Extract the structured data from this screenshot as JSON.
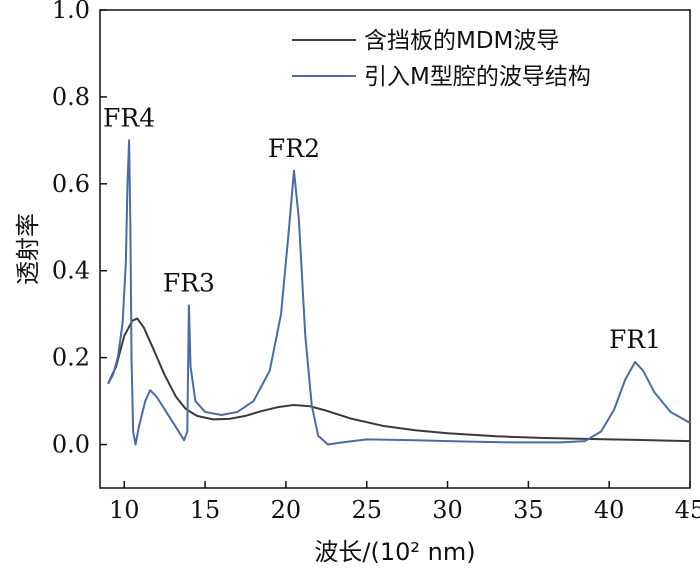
{
  "chart_data": {
    "type": "line",
    "xlabel": "波长/(10² nm)",
    "ylabel": "透射率",
    "xlim": [
      8.5,
      45
    ],
    "ylim": [
      -0.1,
      1.0
    ],
    "xticks": [
      10,
      15,
      20,
      25,
      30,
      35,
      40,
      45
    ],
    "xtick_labels": [
      "10",
      "15",
      "20",
      "25",
      "30",
      "35",
      "40",
      "45"
    ],
    "yticks": [
      0.0,
      0.2,
      0.4,
      0.6,
      0.8,
      1.0
    ],
    "ytick_labels": [
      "0.0",
      "0.2",
      "0.4",
      "0.6",
      "0.8",
      "1.0"
    ],
    "grid": false,
    "legend_position": "top-right",
    "series": [
      {
        "name": "含挡板的MDM波导",
        "color": "#3a3a3a",
        "points": [
          [
            9.0,
            0.14
          ],
          [
            9.5,
            0.18
          ],
          [
            10.0,
            0.25
          ],
          [
            10.5,
            0.285
          ],
          [
            10.8,
            0.29
          ],
          [
            11.2,
            0.27
          ],
          [
            11.8,
            0.22
          ],
          [
            12.5,
            0.16
          ],
          [
            13.2,
            0.11
          ],
          [
            13.8,
            0.082
          ],
          [
            14.5,
            0.066
          ],
          [
            15.5,
            0.058
          ],
          [
            16.5,
            0.059
          ],
          [
            17.5,
            0.066
          ],
          [
            18.5,
            0.077
          ],
          [
            19.5,
            0.086
          ],
          [
            20.5,
            0.091
          ],
          [
            21.5,
            0.088
          ],
          [
            22.5,
            0.078
          ],
          [
            24.0,
            0.06
          ],
          [
            26.0,
            0.043
          ],
          [
            28.0,
            0.033
          ],
          [
            30.0,
            0.026
          ],
          [
            33.0,
            0.019
          ],
          [
            36.0,
            0.015
          ],
          [
            40.0,
            0.012
          ],
          [
            45.0,
            0.008
          ]
        ]
      },
      {
        "name": "引入M型腔的波导结构",
        "color": "#4a6aa8",
        "points": [
          [
            9.0,
            0.14
          ],
          [
            9.3,
            0.16
          ],
          [
            9.6,
            0.2
          ],
          [
            9.9,
            0.28
          ],
          [
            10.1,
            0.42
          ],
          [
            10.2,
            0.6
          ],
          [
            10.3,
            0.7
          ],
          [
            10.38,
            0.5
          ],
          [
            10.45,
            0.2
          ],
          [
            10.55,
            0.03
          ],
          [
            10.7,
            0.0
          ],
          [
            10.9,
            0.04
          ],
          [
            11.3,
            0.1
          ],
          [
            11.6,
            0.125
          ],
          [
            12.0,
            0.11
          ],
          [
            12.6,
            0.075
          ],
          [
            13.2,
            0.04
          ],
          [
            13.7,
            0.01
          ],
          [
            13.9,
            0.03
          ],
          [
            14.0,
            0.32
          ],
          [
            14.1,
            0.18
          ],
          [
            14.4,
            0.1
          ],
          [
            15.0,
            0.075
          ],
          [
            16.0,
            0.068
          ],
          [
            17.0,
            0.075
          ],
          [
            18.0,
            0.1
          ],
          [
            19.0,
            0.17
          ],
          [
            19.7,
            0.3
          ],
          [
            20.2,
            0.5
          ],
          [
            20.5,
            0.63
          ],
          [
            20.8,
            0.52
          ],
          [
            21.2,
            0.25
          ],
          [
            21.6,
            0.09
          ],
          [
            22.0,
            0.02
          ],
          [
            22.6,
            0.0
          ],
          [
            23.5,
            0.005
          ],
          [
            25.0,
            0.012
          ],
          [
            28.0,
            0.01
          ],
          [
            31.0,
            0.007
          ],
          [
            34.0,
            0.005
          ],
          [
            37.0,
            0.005
          ],
          [
            38.5,
            0.008
          ],
          [
            39.5,
            0.03
          ],
          [
            40.3,
            0.08
          ],
          [
            41.0,
            0.15
          ],
          [
            41.6,
            0.19
          ],
          [
            42.1,
            0.17
          ],
          [
            42.8,
            0.12
          ],
          [
            43.8,
            0.075
          ],
          [
            45.0,
            0.05
          ]
        ]
      }
    ],
    "annotations": [
      {
        "text": "FR4",
        "x": 10.3,
        "y": 0.7
      },
      {
        "text": "FR3",
        "x": 14.0,
        "y": 0.32
      },
      {
        "text": "FR2",
        "x": 20.5,
        "y": 0.63
      },
      {
        "text": "FR1",
        "x": 41.6,
        "y": 0.19
      }
    ]
  }
}
